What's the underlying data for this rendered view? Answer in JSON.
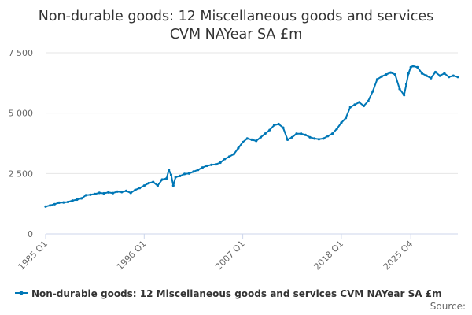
{
  "chart_data": {
    "type": "line",
    "title_line1": "Non-durable goods: 12 Miscellaneous goods and services",
    "title_line2": "CVM NAYear SA £m",
    "xlabel": "",
    "ylabel": "",
    "ylim": [
      0,
      7500
    ],
    "y_ticks": [
      0,
      2500,
      5000,
      7500
    ],
    "y_tick_labels": [
      "0",
      "2 500",
      "5 000",
      "7 500"
    ],
    "x_ticks": [
      "1985 Q1",
      "1996 Q1",
      "2007 Q1",
      "2018 Q1",
      "2025 Q4"
    ],
    "grid": true,
    "legend_position": "bottom",
    "source_label": "Source:",
    "series": [
      {
        "name": "Non-durable goods: 12 Miscellaneous goods and services CVM NAYear SA £m",
        "color": "#0077b6",
        "points": [
          [
            "1985 Q1",
            1130
          ],
          [
            "1985 Q3",
            1180
          ],
          [
            "1986 Q1",
            1230
          ],
          [
            "1986 Q3",
            1290
          ],
          [
            "1987 Q1",
            1300
          ],
          [
            "1987 Q3",
            1320
          ],
          [
            "1988 Q1",
            1380
          ],
          [
            "1988 Q3",
            1420
          ],
          [
            "1989 Q1",
            1470
          ],
          [
            "1989 Q3",
            1600
          ],
          [
            "1990 Q1",
            1620
          ],
          [
            "1990 Q3",
            1650
          ],
          [
            "1991 Q1",
            1700
          ],
          [
            "1991 Q3",
            1680
          ],
          [
            "1992 Q1",
            1720
          ],
          [
            "1992 Q3",
            1690
          ],
          [
            "1993 Q1",
            1750
          ],
          [
            "1993 Q3",
            1730
          ],
          [
            "1994 Q1",
            1780
          ],
          [
            "1994 Q3",
            1700
          ],
          [
            "1995 Q1",
            1820
          ],
          [
            "1995 Q3",
            1900
          ],
          [
            "1996 Q1",
            2000
          ],
          [
            "1996 Q3",
            2100
          ],
          [
            "1997 Q1",
            2150
          ],
          [
            "1997 Q3",
            2000
          ],
          [
            "1998 Q1",
            2250
          ],
          [
            "1998 Q3",
            2300
          ],
          [
            "1998 Q4",
            2650
          ],
          [
            "1999 Q1",
            2450
          ],
          [
            "1999 Q2",
            2000
          ],
          [
            "1999 Q3",
            2350
          ],
          [
            "2000 Q1",
            2400
          ],
          [
            "2000 Q3",
            2480
          ],
          [
            "2001 Q1",
            2500
          ],
          [
            "2001 Q3",
            2580
          ],
          [
            "2002 Q1",
            2650
          ],
          [
            "2002 Q3",
            2750
          ],
          [
            "2003 Q1",
            2820
          ],
          [
            "2003 Q3",
            2860
          ],
          [
            "2004 Q1",
            2880
          ],
          [
            "2004 Q3",
            2950
          ],
          [
            "2005 Q1",
            3100
          ],
          [
            "2005 Q3",
            3200
          ],
          [
            "2006 Q1",
            3300
          ],
          [
            "2006 Q3",
            3550
          ],
          [
            "2007 Q1",
            3800
          ],
          [
            "2007 Q3",
            3950
          ],
          [
            "2008 Q1",
            3900
          ],
          [
            "2008 Q3",
            3850
          ],
          [
            "2009 Q1",
            4000
          ],
          [
            "2009 Q3",
            4150
          ],
          [
            "2010 Q1",
            4300
          ],
          [
            "2010 Q3",
            4500
          ],
          [
            "2011 Q1",
            4550
          ],
          [
            "2011 Q3",
            4400
          ],
          [
            "2012 Q1",
            3900
          ],
          [
            "2012 Q3",
            4000
          ],
          [
            "2013 Q1",
            4150
          ],
          [
            "2013 Q3",
            4150
          ],
          [
            "2014 Q1",
            4100
          ],
          [
            "2014 Q3",
            4000
          ],
          [
            "2015 Q1",
            3950
          ],
          [
            "2015 Q3",
            3920
          ],
          [
            "2016 Q1",
            3950
          ],
          [
            "2016 Q3",
            4050
          ],
          [
            "2017 Q1",
            4150
          ],
          [
            "2017 Q3",
            4350
          ],
          [
            "2018 Q1",
            4600
          ],
          [
            "2018 Q3",
            4800
          ],
          [
            "2019 Q1",
            5250
          ],
          [
            "2019 Q3",
            5350
          ],
          [
            "2020 Q1",
            5450
          ],
          [
            "2020 Q3",
            5300
          ],
          [
            "2021 Q1",
            5500
          ],
          [
            "2021 Q3",
            5900
          ],
          [
            "2022 Q1",
            6400
          ],
          [
            "2022 Q3",
            6520
          ],
          [
            "2023 Q1",
            6600
          ],
          [
            "2023 Q3",
            6680
          ],
          [
            "2024 Q1",
            6600
          ],
          [
            "2024 Q3",
            6000
          ],
          [
            "2025 Q1",
            5750
          ],
          [
            "2025 Q2",
            6200
          ],
          [
            "2025 Q3",
            6650
          ],
          [
            "2025 Q4",
            6900
          ],
          [
            "2026 Q1",
            6950
          ],
          [
            "2026 Q3",
            6900
          ],
          [
            "2027 Q1",
            6650
          ],
          [
            "2027 Q3",
            6550
          ],
          [
            "2028 Q1",
            6450
          ],
          [
            "2028 Q3",
            6700
          ],
          [
            "2029 Q1",
            6550
          ],
          [
            "2029 Q3",
            6650
          ],
          [
            "2030 Q1",
            6500
          ],
          [
            "2030 Q3",
            6550
          ],
          [
            "2031 Q1",
            6500
          ]
        ]
      }
    ]
  }
}
